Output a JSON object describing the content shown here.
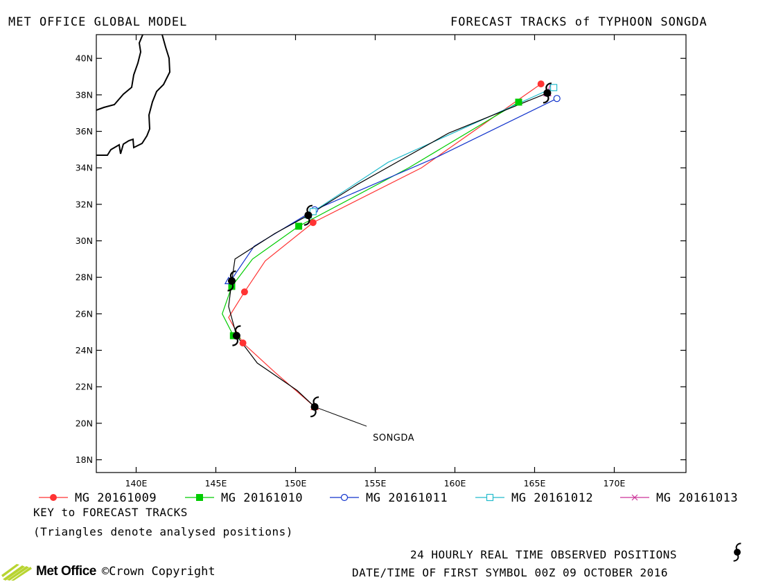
{
  "header": {
    "left": "MET OFFICE GLOBAL MODEL",
    "right": "FORECAST TRACKS of TYPHOON SONGDA"
  },
  "footer": {
    "key_title": "KEY to FORECAST TRACKS",
    "key_note": "(Triangles denote analysed positions)",
    "observed": "24 HOURLY REAL TIME OBSERVED POSITIONS",
    "first_symbol": "DATE/TIME OF FIRST SYMBOL 00Z 09 OCTOBER 2016",
    "logo": "Met Office",
    "copyright": "©Crown Copyright"
  },
  "chart_data": {
    "type": "line",
    "title": "FORECAST TRACKS of TYPHOON SONGDA",
    "xlabel": "",
    "ylabel": "",
    "xlim": [
      137.5,
      174.5
    ],
    "ylim": [
      17.3,
      41.3
    ],
    "x_ticks": [
      140,
      145,
      150,
      155,
      160,
      165,
      170
    ],
    "x_tick_labels": [
      "140E",
      "145E",
      "150E",
      "155E",
      "160E",
      "165E",
      "170E"
    ],
    "y_ticks": [
      18,
      20,
      22,
      24,
      26,
      28,
      30,
      32,
      34,
      36,
      38,
      40
    ],
    "y_tick_labels": [
      "18N",
      "20N",
      "22N",
      "24N",
      "26N",
      "28N",
      "30N",
      "32N",
      "34N",
      "36N",
      "38N",
      "40N"
    ],
    "grid": false,
    "legend_position": "bottom",
    "storm_label": "SONGDA",
    "observed": {
      "name": "24 HOURLY REAL TIME OBSERVED POSITIONS",
      "color": "#000000",
      "lon": [
        151.2,
        150.1,
        147.6,
        146.3,
        145.8,
        146.0,
        146.2,
        148.7,
        150.8,
        153.9,
        159.6,
        165.8
      ],
      "lat": [
        20.9,
        21.8,
        23.3,
        24.8,
        26.4,
        27.8,
        29.0,
        30.4,
        31.4,
        33.1,
        35.9,
        38.1
      ],
      "symbol_indices": [
        0,
        3,
        5,
        8,
        11
      ]
    },
    "series": [
      {
        "name": "MG 20161009",
        "color": "#ff3333",
        "marker": "filled-circle",
        "lon": [
          151.2,
          148.7,
          146.7,
          145.8,
          146.8,
          148.1,
          151.1,
          157.9,
          165.4
        ],
        "lat": [
          20.9,
          22.8,
          24.4,
          25.8,
          27.2,
          28.9,
          31.0,
          34.0,
          38.6
        ],
        "marker_indices": [
          2,
          4,
          6,
          8
        ]
      },
      {
        "name": "MG 20161010",
        "color": "#00cc00",
        "marker": "filled-square",
        "lon": [
          146.3,
          146.1,
          145.4,
          146.0,
          147.3,
          150.2,
          157.1,
          164.0
        ],
        "lat": [
          24.8,
          24.8,
          26.0,
          27.5,
          29.0,
          30.8,
          34.0,
          37.6
        ],
        "marker_indices": [
          1,
          3,
          5,
          7
        ]
      },
      {
        "name": "MG 20161011",
        "color": "#1133cc",
        "marker": "open-circle",
        "lon": [
          145.8,
          146.0,
          147.4,
          151.2,
          158.9,
          166.4
        ],
        "lat": [
          27.8,
          27.9,
          29.7,
          31.7,
          34.6,
          37.8
        ],
        "marker_indices": [
          3,
          5
        ]
      },
      {
        "name": "MG 20161012",
        "color": "#22bbcc",
        "marker": "open-square",
        "lon": [
          150.8,
          151.1,
          155.8,
          166.2
        ],
        "lat": [
          31.4,
          31.6,
          34.3,
          38.4
        ],
        "marker_indices": [
          1,
          3
        ]
      },
      {
        "name": "MG 20161013",
        "color": "#cc3399",
        "marker": "cross",
        "lon": [
          165.8,
          166.0
        ],
        "lat": [
          38.1,
          38.6
        ],
        "marker_indices": []
      }
    ]
  }
}
